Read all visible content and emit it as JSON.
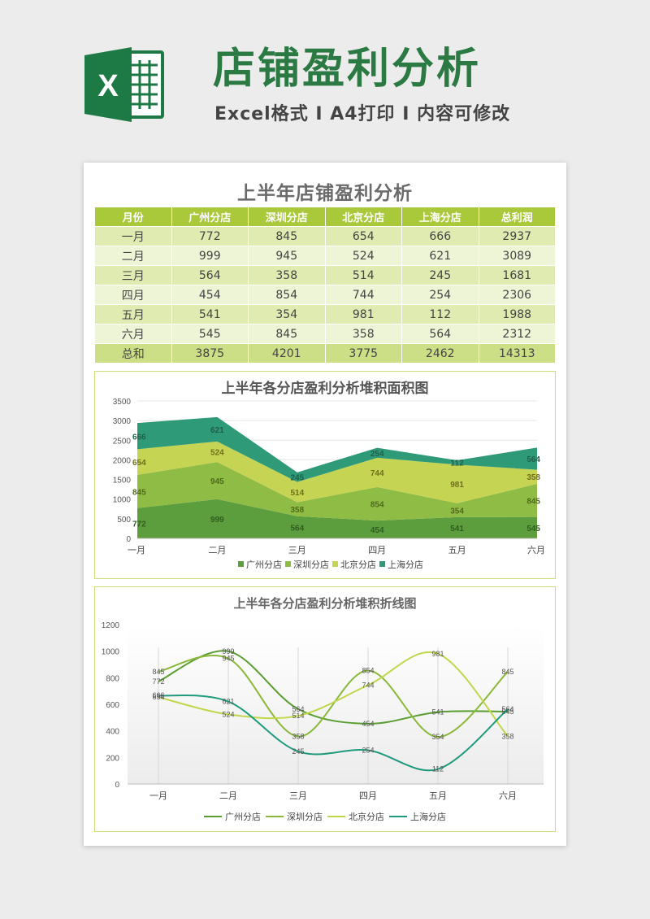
{
  "header": {
    "logo_letter": "X",
    "title": "店铺盈利分析",
    "subtitle": "Excel格式 Ⅰ A4打印 Ⅰ 内容可修改"
  },
  "sheet": {
    "title": "上半年店铺盈利分析"
  },
  "table": {
    "columns": [
      "月份",
      "广州分店",
      "深圳分店",
      "北京分店",
      "上海分店",
      "总利润"
    ],
    "rows": [
      [
        "一月",
        "772",
        "845",
        "654",
        "666",
        "2937"
      ],
      [
        "二月",
        "999",
        "945",
        "524",
        "621",
        "3089"
      ],
      [
        "三月",
        "564",
        "358",
        "514",
        "245",
        "1681"
      ],
      [
        "四月",
        "454",
        "854",
        "744",
        "254",
        "2306"
      ],
      [
        "五月",
        "541",
        "354",
        "981",
        "112",
        "1988"
      ],
      [
        "六月",
        "545",
        "845",
        "358",
        "564",
        "2312"
      ],
      [
        "总和",
        "3875",
        "4201",
        "3775",
        "2462",
        "14313"
      ]
    ]
  },
  "chart_data": [
    {
      "type": "area",
      "stacked": true,
      "title": "上半年各分店盈利分析堆积面积图",
      "categories": [
        "一月",
        "二月",
        "三月",
        "四月",
        "五月",
        "六月"
      ],
      "ylim": [
        0,
        3500
      ],
      "yticks": [
        0,
        500,
        1000,
        1500,
        2000,
        2500,
        3000,
        3500
      ],
      "legend_position": "bottom",
      "series": [
        {
          "name": "广州分店",
          "values": [
            772,
            999,
            564,
            454,
            541,
            545
          ],
          "color": "#5c9e3d",
          "label_color": "#2f5e1e"
        },
        {
          "name": "深圳分店",
          "values": [
            845,
            945,
            358,
            854,
            354,
            845
          ],
          "color": "#8fbc45",
          "label_color": "#4f6a1a"
        },
        {
          "name": "北京分店",
          "values": [
            654,
            524,
            514,
            744,
            981,
            358
          ],
          "color": "#c5d452",
          "label_color": "#6e6f1a"
        },
        {
          "name": "上海分店",
          "values": [
            666,
            621,
            245,
            254,
            112,
            564
          ],
          "color": "#2f9a78",
          "label_color": "#1e5f4a"
        }
      ]
    },
    {
      "type": "line",
      "smooth": true,
      "title": "上半年各分店盈利分析堆积折线图",
      "categories": [
        "一月",
        "二月",
        "三月",
        "四月",
        "五月",
        "六月"
      ],
      "ylim": [
        0,
        1200
      ],
      "yticks": [
        0,
        200,
        400,
        600,
        800,
        1000,
        1200
      ],
      "legend_position": "bottom",
      "series": [
        {
          "name": "广州分店",
          "values": [
            772,
            999,
            564,
            454,
            541,
            545
          ],
          "color": "#5a9e32"
        },
        {
          "name": "深圳分店",
          "values": [
            845,
            945,
            358,
            854,
            354,
            845
          ],
          "color": "#8ab83a"
        },
        {
          "name": "北京分店",
          "values": [
            654,
            524,
            514,
            744,
            981,
            358
          ],
          "color": "#c2d64b"
        },
        {
          "name": "上海分店",
          "values": [
            666,
            621,
            245,
            254,
            112,
            564
          ],
          "color": "#1f9a7c"
        }
      ]
    }
  ]
}
